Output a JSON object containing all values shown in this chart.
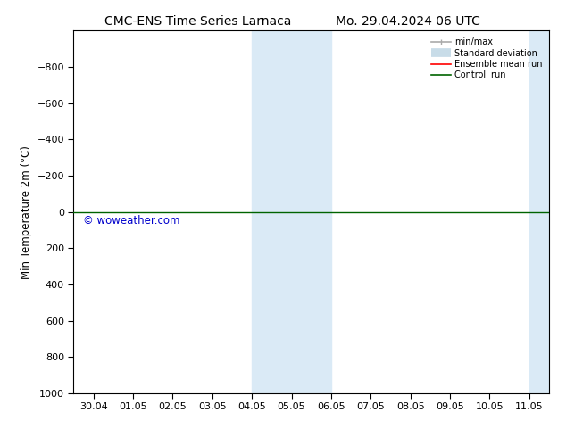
{
  "title_left": "CMC-ENS Time Series Larnaca",
  "title_right": "Mo. 29.04.2024 06 UTC",
  "ylabel": "Min Temperature 2m (°C)",
  "xlabel_ticks": [
    "30.04",
    "01.05",
    "02.05",
    "03.05",
    "04.05",
    "05.05",
    "06.05",
    "07.05",
    "08.05",
    "09.05",
    "10.05",
    "11.05"
  ],
  "ylim_bottom": 1000,
  "ylim_top": -1000,
  "y_ticks": [
    -800,
    -600,
    -400,
    -200,
    0,
    200,
    400,
    600,
    800,
    1000
  ],
  "bg_color": "#ffffff",
  "plot_bg_color": "#ffffff",
  "shaded_regions": [
    {
      "x_start": 4,
      "x_end": 5,
      "color": "#daeaf6"
    },
    {
      "x_start": 5,
      "x_end": 6,
      "color": "#daeaf6"
    },
    {
      "x_start": 11,
      "x_end": 11.55,
      "color": "#daeaf6"
    }
  ],
  "control_run_y": 0,
  "control_run_color": "#006400",
  "ensemble_mean_color": "#ff0000",
  "watermark": "© woweather.com",
  "watermark_color": "#0000cc",
  "legend_items": [
    {
      "label": "min/max",
      "color": "#aaaaaa",
      "lw": 1.2
    },
    {
      "label": "Standard deviation",
      "color": "#c8dce8",
      "lw": 7
    },
    {
      "label": "Ensemble mean run",
      "color": "#ff0000",
      "lw": 1.2
    },
    {
      "label": "Controll run",
      "color": "#006400",
      "lw": 1.2
    }
  ],
  "n_ticks": 12,
  "x_min": -0.5,
  "x_max": 11.5
}
